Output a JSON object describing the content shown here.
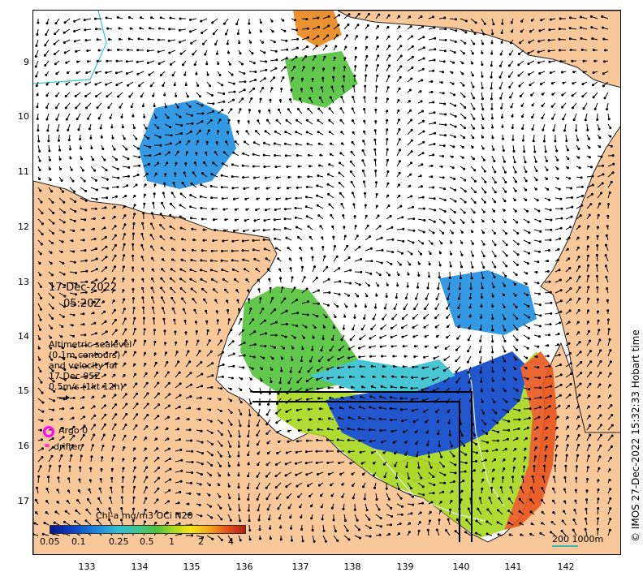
{
  "axes": {
    "y_ticks": [
      "9",
      "10",
      "11",
      "12",
      "13",
      "14",
      "15",
      "16",
      "17"
    ],
    "x_ticks": [
      "133",
      "134",
      "135",
      "136",
      "137",
      "138",
      "139",
      "140",
      "141",
      "142"
    ]
  },
  "date": {
    "line1": "17-Dec-2022",
    "line2": "05:20Z"
  },
  "altimetry_legend": {
    "line1": "Altimetric sealevel",
    "line2": "(0.1m contours)",
    "line3": "and velocity for",
    "line4": "17 Dec 05Z",
    "line5": "0.5m/s (1kt 12h)"
  },
  "markers": {
    "argo": "Argo 0",
    "drifter": "drifter"
  },
  "colorbar": {
    "title": "Chl-a mg/m3 OCi N20",
    "labels": [
      "0.05",
      "0.1",
      "0.25",
      "0.5",
      "1",
      "2",
      "4"
    ]
  },
  "scale": {
    "text": "200  1000m"
  },
  "credit": "© IMOS 27-Dec-2022 15:32:33 Hobart time",
  "colors": {
    "land": "#f8c89a",
    "chl_low": "#0a44c8",
    "chl_mid": "#52c23a",
    "chl_high": "#e8561c",
    "argo": "#ff00ff",
    "drifter": "#ff33cc"
  }
}
